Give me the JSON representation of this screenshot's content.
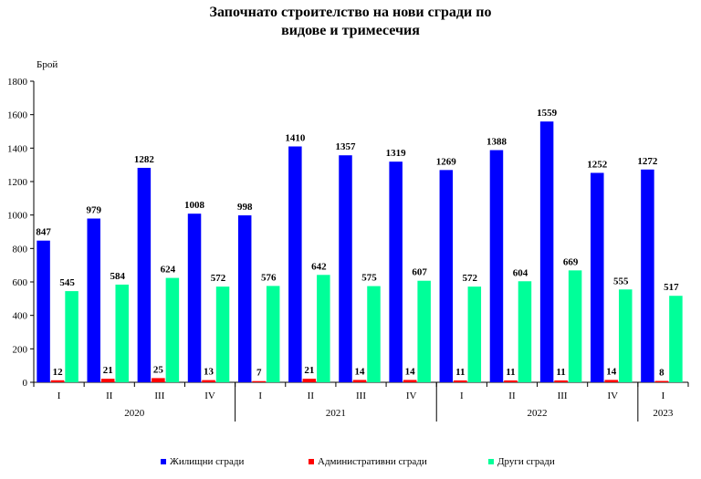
{
  "chart_data": {
    "type": "bar",
    "title_lines": [
      "Започнато строителство на нови сгради по",
      "видове и тримесечия"
    ],
    "ylabel": "Брой",
    "ylim": [
      0,
      1800
    ],
    "yticks": [
      0,
      200,
      400,
      600,
      800,
      1000,
      1200,
      1400,
      1600,
      1800
    ],
    "grid": false,
    "legend_position": "bottom",
    "categories": [
      "I",
      "II",
      "III",
      "IV",
      "I",
      "II",
      "III",
      "IV",
      "I",
      "II",
      "III",
      "IV",
      "I"
    ],
    "year_groups": [
      {
        "label": "2020",
        "start": 0,
        "end": 3
      },
      {
        "label": "2021",
        "start": 4,
        "end": 7
      },
      {
        "label": "2022",
        "start": 8,
        "end": 11
      },
      {
        "label": "2023",
        "start": 12,
        "end": 12
      }
    ],
    "series": [
      {
        "name": "Жилищни сгради",
        "color": "#0000FF",
        "values": [
          847,
          979,
          1282,
          1008,
          998,
          1410,
          1357,
          1319,
          1269,
          1388,
          1559,
          1252,
          1272
        ]
      },
      {
        "name": "Административни сгради",
        "color": "#FF0000",
        "values": [
          12,
          21,
          25,
          13,
          7,
          21,
          14,
          14,
          11,
          11,
          11,
          14,
          8
        ]
      },
      {
        "name": "Други сгради",
        "color": "#00FF99",
        "values": [
          545,
          584,
          624,
          572,
          576,
          642,
          575,
          607,
          572,
          604,
          669,
          555,
          517
        ]
      }
    ]
  }
}
